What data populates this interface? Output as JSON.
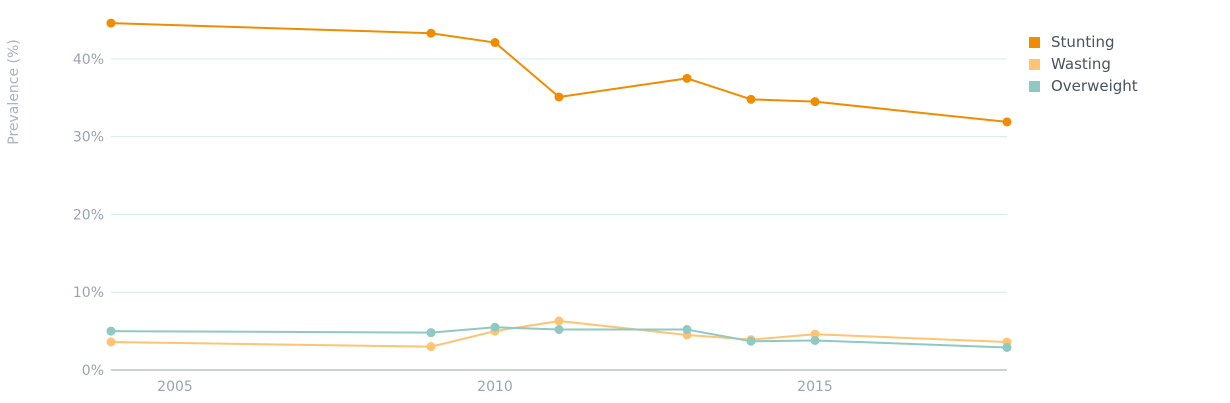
{
  "chart_data": {
    "type": "line",
    "title": "",
    "xlabel": "",
    "ylabel": "Prevalence (%)",
    "xlim": [
      2004,
      2018
    ],
    "ylim": [
      0,
      45
    ],
    "x_ticks": [
      2005,
      2010,
      2015
    ],
    "x_tick_labels": [
      "2005",
      "2010",
      "2015"
    ],
    "y_ticks": [
      0,
      10,
      20,
      30,
      40
    ],
    "y_tick_labels": [
      "0%",
      "10%",
      "20%",
      "30%",
      "40%"
    ],
    "grid": true,
    "legend_position": "top-right",
    "series": [
      {
        "name": "Stunting",
        "color": "#F08C00",
        "x": [
          2004,
          2009,
          2010,
          2011,
          2013,
          2014,
          2015,
          2018
        ],
        "values": [
          44.6,
          43.3,
          42.1,
          35.1,
          37.5,
          34.8,
          34.5,
          31.9
        ]
      },
      {
        "name": "Wasting",
        "color": "#FFC374",
        "x": [
          2004,
          2009,
          2010,
          2011,
          2013,
          2014,
          2015,
          2018
        ],
        "values": [
          3.6,
          3.0,
          5.0,
          6.3,
          4.5,
          3.9,
          4.6,
          3.6
        ]
      },
      {
        "name": "Overweight",
        "color": "#8EC9C4",
        "x": [
          2004,
          2009,
          2010,
          2011,
          2013,
          2014,
          2015,
          2018
        ],
        "values": [
          5.0,
          4.8,
          5.5,
          5.2,
          5.2,
          3.7,
          3.8,
          2.9
        ]
      }
    ]
  }
}
